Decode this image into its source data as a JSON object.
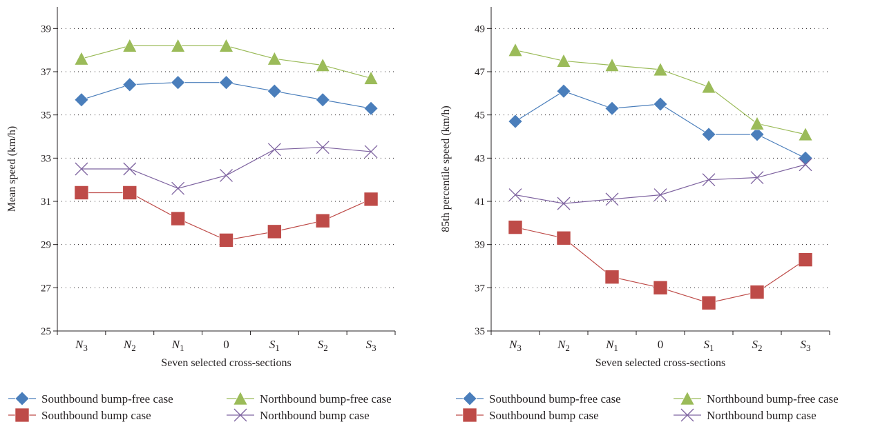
{
  "chart_data": [
    {
      "type": "line",
      "categories": [
        "N3",
        "N2",
        "N1",
        "0",
        "S1",
        "S2",
        "S3"
      ],
      "category_labels": [
        {
          "main": "N",
          "sub": "3"
        },
        {
          "main": "N",
          "sub": "2"
        },
        {
          "main": "N",
          "sub": "1"
        },
        {
          "main": "0",
          "sub": ""
        },
        {
          "main": "S",
          "sub": "1"
        },
        {
          "main": "S",
          "sub": "2"
        },
        {
          "main": "S",
          "sub": "3"
        }
      ],
      "xlabel": "Seven selected cross-sections",
      "ylabel": "Mean speed (km/h)",
      "ylim": [
        25,
        40
      ],
      "yticks": [
        25,
        27,
        29,
        31,
        33,
        35,
        37,
        39
      ],
      "grid": "horizontal dotted",
      "legend_position": "bottom",
      "series": [
        {
          "name": "Southbound bump-free case",
          "color": "#4a7ebb",
          "marker": "diamond",
          "values": [
            35.7,
            36.4,
            36.5,
            36.5,
            36.1,
            35.7,
            35.3
          ]
        },
        {
          "name": "Northbound bump-free case",
          "color": "#9bbb59",
          "marker": "triangle",
          "values": [
            37.6,
            38.2,
            38.2,
            38.2,
            37.6,
            37.3,
            36.7
          ]
        },
        {
          "name": "Southbound bump case",
          "color": "#be4b48",
          "marker": "square",
          "values": [
            31.4,
            31.4,
            30.2,
            29.2,
            29.6,
            30.1,
            31.1
          ]
        },
        {
          "name": "Northbound bump case",
          "color": "#7e63a0",
          "marker": "x",
          "values": [
            32.5,
            32.5,
            31.6,
            32.2,
            33.4,
            33.5,
            33.3
          ]
        }
      ]
    },
    {
      "type": "line",
      "categories": [
        "N3",
        "N2",
        "N1",
        "0",
        "S1",
        "S2",
        "S3"
      ],
      "category_labels": [
        {
          "main": "N",
          "sub": "3"
        },
        {
          "main": "N",
          "sub": "2"
        },
        {
          "main": "N",
          "sub": "1"
        },
        {
          "main": "0",
          "sub": ""
        },
        {
          "main": "S",
          "sub": "1"
        },
        {
          "main": "S",
          "sub": "2"
        },
        {
          "main": "S",
          "sub": "3"
        }
      ],
      "xlabel": "Seven selected cross-sections",
      "ylabel": "85th percentile speed (km/h)",
      "ylim": [
        35,
        50
      ],
      "yticks": [
        35,
        37,
        39,
        41,
        43,
        45,
        47,
        49
      ],
      "grid": "horizontal dotted",
      "legend_position": "bottom",
      "series": [
        {
          "name": "Southbound bump-free case",
          "color": "#4a7ebb",
          "marker": "diamond",
          "values": [
            44.7,
            46.1,
            45.3,
            45.5,
            44.1,
            44.1,
            43.0
          ]
        },
        {
          "name": "Northbound bump-free case",
          "color": "#9bbb59",
          "marker": "triangle",
          "values": [
            48.0,
            47.5,
            47.3,
            47.1,
            46.3,
            44.6,
            44.1
          ]
        },
        {
          "name": "Southbound bump case",
          "color": "#be4b48",
          "marker": "square",
          "values": [
            39.8,
            39.3,
            37.5,
            37.0,
            36.3,
            36.8,
            38.3
          ]
        },
        {
          "name": "Northbound bump case",
          "color": "#7e63a0",
          "marker": "x",
          "values": [
            41.3,
            40.9,
            41.1,
            41.3,
            42.0,
            42.1,
            42.7
          ]
        }
      ]
    }
  ]
}
